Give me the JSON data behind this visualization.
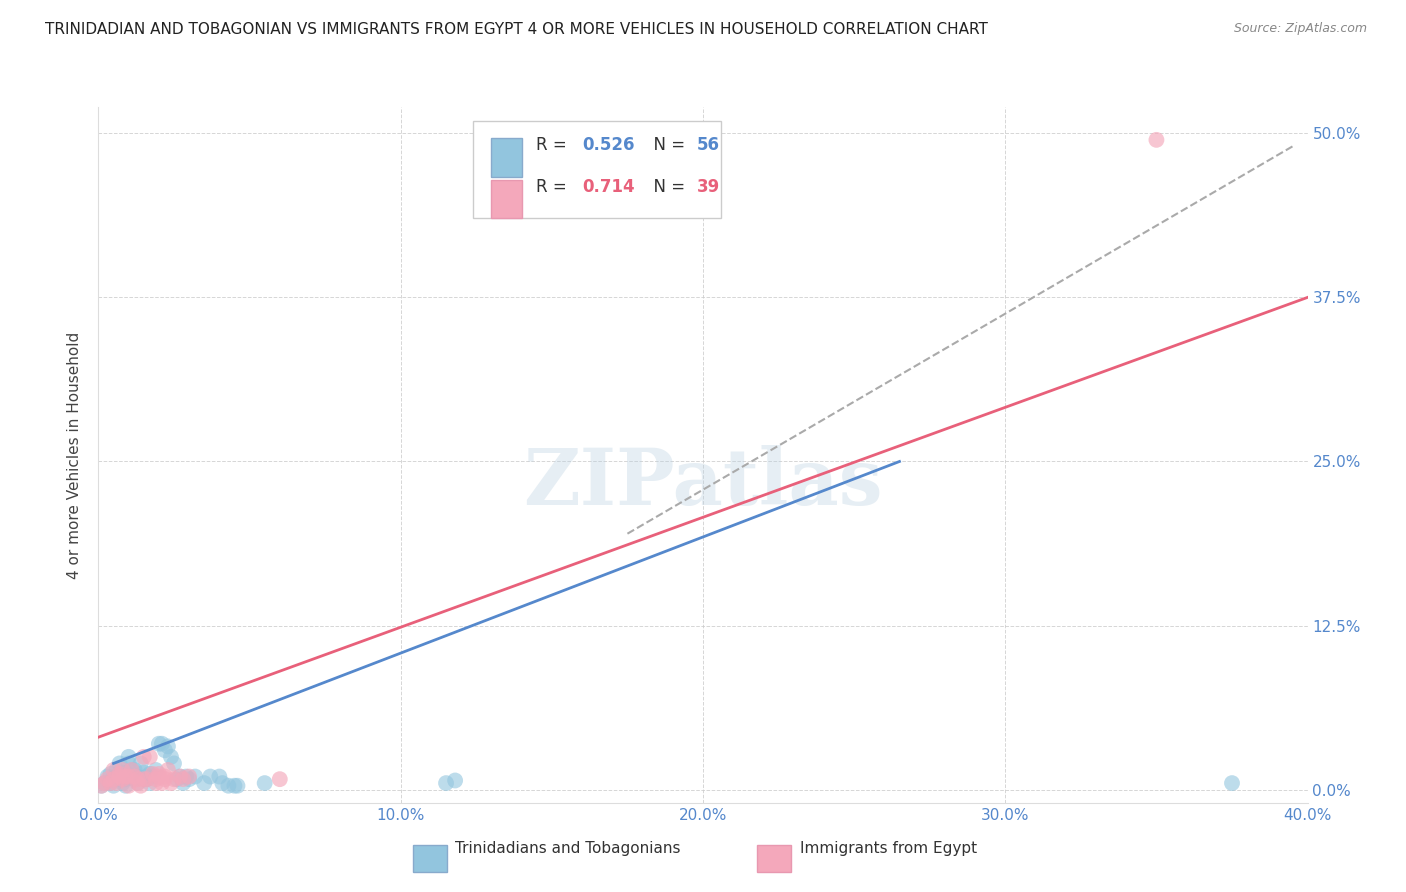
{
  "title": "TRINIDADIAN AND TOBAGONIAN VS IMMIGRANTS FROM EGYPT 4 OR MORE VEHICLES IN HOUSEHOLD CORRELATION CHART",
  "source": "Source: ZipAtlas.com",
  "ylabel": "4 or more Vehicles in Household",
  "ylabel_ticks": [
    "0.0%",
    "12.5%",
    "25.0%",
    "37.5%",
    "50.0%"
  ],
  "xlim": [
    0.0,
    0.4
  ],
  "ylim": [
    -0.01,
    0.52
  ],
  "yaxis_min": 0.0,
  "yaxis_max": 0.5,
  "legend_blue_R": "0.526",
  "legend_blue_N": "56",
  "legend_pink_R": "0.714",
  "legend_pink_N": "39",
  "blue_color": "#92c5de",
  "pink_color": "#f4a8bb",
  "trendline_blue_color": "#5588cc",
  "trendline_pink_color": "#e8607a",
  "watermark": "ZIPatlas",
  "blue_scatter": [
    [
      0.001,
      0.003
    ],
    [
      0.002,
      0.005
    ],
    [
      0.003,
      0.01
    ],
    [
      0.004,
      0.005
    ],
    [
      0.004,
      0.012
    ],
    [
      0.005,
      0.008
    ],
    [
      0.005,
      0.003
    ],
    [
      0.006,
      0.01
    ],
    [
      0.006,
      0.015
    ],
    [
      0.007,
      0.008
    ],
    [
      0.007,
      0.02
    ],
    [
      0.008,
      0.005
    ],
    [
      0.008,
      0.01
    ],
    [
      0.009,
      0.003
    ],
    [
      0.009,
      0.008
    ],
    [
      0.009,
      0.013
    ],
    [
      0.01,
      0.01
    ],
    [
      0.01,
      0.02
    ],
    [
      0.01,
      0.025
    ],
    [
      0.011,
      0.01
    ],
    [
      0.011,
      0.015
    ],
    [
      0.012,
      0.008
    ],
    [
      0.012,
      0.015
    ],
    [
      0.013,
      0.005
    ],
    [
      0.013,
      0.01
    ],
    [
      0.014,
      0.02
    ],
    [
      0.015,
      0.013
    ],
    [
      0.016,
      0.008
    ],
    [
      0.016,
      0.01
    ],
    [
      0.017,
      0.005
    ],
    [
      0.017,
      0.012
    ],
    [
      0.018,
      0.01
    ],
    [
      0.019,
      0.015
    ],
    [
      0.02,
      0.035
    ],
    [
      0.021,
      0.035
    ],
    [
      0.022,
      0.03
    ],
    [
      0.023,
      0.033
    ],
    [
      0.024,
      0.025
    ],
    [
      0.025,
      0.02
    ],
    [
      0.026,
      0.008
    ],
    [
      0.027,
      0.01
    ],
    [
      0.028,
      0.005
    ],
    [
      0.029,
      0.01
    ],
    [
      0.03,
      0.008
    ],
    [
      0.032,
      0.01
    ],
    [
      0.035,
      0.005
    ],
    [
      0.037,
      0.01
    ],
    [
      0.04,
      0.01
    ],
    [
      0.041,
      0.005
    ],
    [
      0.043,
      0.003
    ],
    [
      0.045,
      0.003
    ],
    [
      0.046,
      0.003
    ],
    [
      0.055,
      0.005
    ],
    [
      0.115,
      0.005
    ],
    [
      0.118,
      0.007
    ],
    [
      0.375,
      0.005
    ]
  ],
  "pink_scatter": [
    [
      0.001,
      0.003
    ],
    [
      0.002,
      0.005
    ],
    [
      0.003,
      0.008
    ],
    [
      0.004,
      0.005
    ],
    [
      0.005,
      0.008
    ],
    [
      0.005,
      0.015
    ],
    [
      0.006,
      0.005
    ],
    [
      0.007,
      0.01
    ],
    [
      0.007,
      0.012
    ],
    [
      0.008,
      0.008
    ],
    [
      0.008,
      0.015
    ],
    [
      0.009,
      0.01
    ],
    [
      0.01,
      0.003
    ],
    [
      0.01,
      0.01
    ],
    [
      0.011,
      0.015
    ],
    [
      0.012,
      0.01
    ],
    [
      0.013,
      0.005
    ],
    [
      0.013,
      0.008
    ],
    [
      0.014,
      0.003
    ],
    [
      0.015,
      0.008
    ],
    [
      0.015,
      0.025
    ],
    [
      0.016,
      0.008
    ],
    [
      0.017,
      0.025
    ],
    [
      0.018,
      0.012
    ],
    [
      0.019,
      0.005
    ],
    [
      0.019,
      0.008
    ],
    [
      0.02,
      0.01
    ],
    [
      0.02,
      0.012
    ],
    [
      0.021,
      0.005
    ],
    [
      0.022,
      0.008
    ],
    [
      0.022,
      0.01
    ],
    [
      0.023,
      0.015
    ],
    [
      0.024,
      0.005
    ],
    [
      0.025,
      0.008
    ],
    [
      0.027,
      0.01
    ],
    [
      0.028,
      0.008
    ],
    [
      0.03,
      0.01
    ],
    [
      0.06,
      0.008
    ],
    [
      0.35,
      0.495
    ]
  ],
  "blue_trend_x": [
    0.005,
    0.265
  ],
  "blue_trend_y": [
    0.02,
    0.25
  ],
  "pink_trend_x": [
    0.0,
    0.4
  ],
  "pink_trend_y": [
    0.04,
    0.375
  ],
  "gray_trend_x": [
    0.175,
    0.395
  ],
  "gray_trend_y": [
    0.195,
    0.49
  ]
}
